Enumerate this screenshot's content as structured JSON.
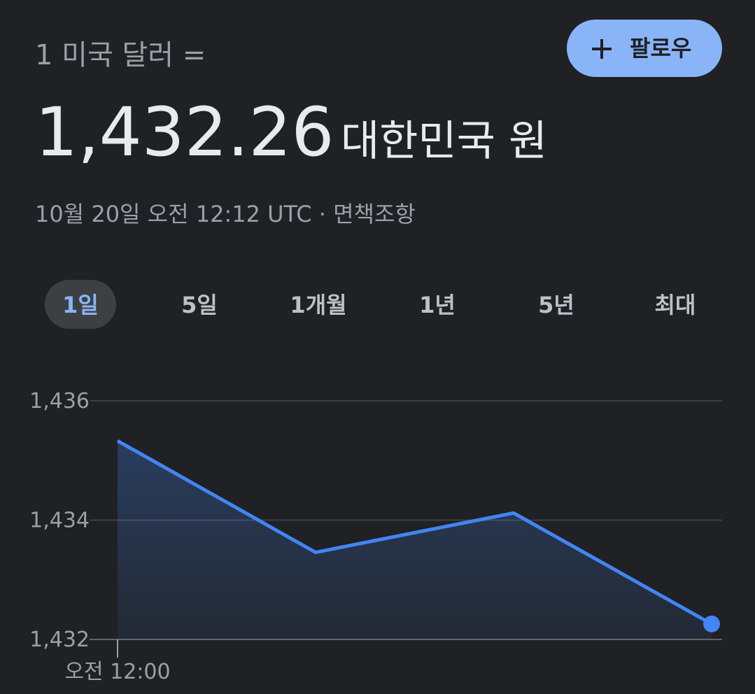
{
  "header": {
    "base": "1 미국 달러 =",
    "rate": "1,432.26",
    "currency": "대한민국 원",
    "timestamp": "10월 20일 오전 12:12 UTC",
    "separator": "·",
    "disclaimer": "면책조항",
    "follow_button": "팔로우"
  },
  "tabs": [
    "1일",
    "5일",
    "1개월",
    "1년",
    "5년",
    "최대"
  ],
  "selected_tab": 0,
  "chart_data": {
    "type": "line",
    "categories": [
      "오전 12:00",
      null,
      null,
      null
    ],
    "values": [
      1435.33,
      1433.46,
      1434.12,
      1432.26
    ],
    "color": "#4285f4",
    "ylim": [
      1432,
      1436
    ],
    "yticks": [
      {
        "value": 1432,
        "label": "1,432"
      },
      {
        "value": 1434,
        "label": "1,434"
      },
      {
        "value": 1436,
        "label": "1,436"
      }
    ],
    "grid": true
  }
}
